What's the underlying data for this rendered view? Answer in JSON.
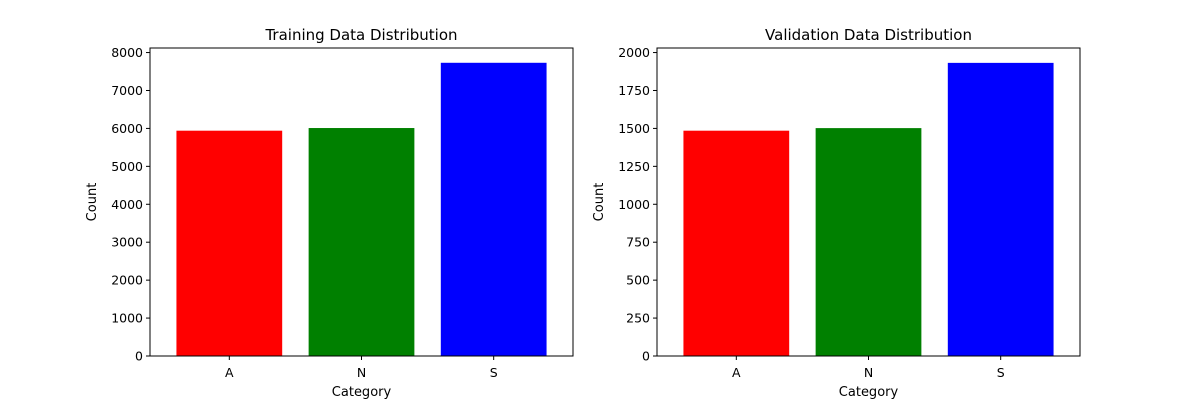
{
  "chart_data": [
    {
      "type": "bar",
      "title": "Training Data Distribution",
      "xlabel": "Category",
      "ylabel": "Count",
      "categories": [
        "A",
        "N",
        "S"
      ],
      "values": [
        5940,
        6010,
        7730
      ],
      "colors": [
        "#ff0000",
        "#008000",
        "#0000ff"
      ],
      "ylim": [
        0,
        8120
      ],
      "yticks": [
        0,
        1000,
        2000,
        3000,
        4000,
        5000,
        6000,
        7000,
        8000
      ],
      "grid": false
    },
    {
      "type": "bar",
      "title": "Validation Data Distribution",
      "xlabel": "Category",
      "ylabel": "Count",
      "categories": [
        "A",
        "N",
        "S"
      ],
      "values": [
        1485,
        1502,
        1932
      ],
      "colors": [
        "#ff0000",
        "#008000",
        "#0000ff"
      ],
      "ylim": [
        0,
        2030
      ],
      "yticks": [
        0,
        250,
        500,
        750,
        1000,
        1250,
        1500,
        1750,
        2000
      ],
      "grid": false
    }
  ]
}
